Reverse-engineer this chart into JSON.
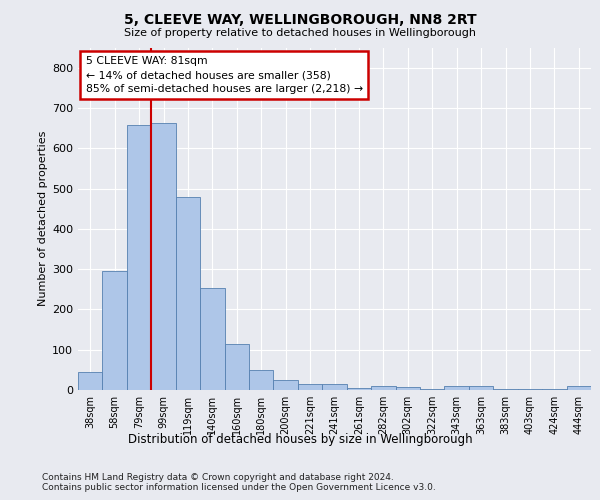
{
  "title": "5, CLEEVE WAY, WELLINGBOROUGH, NN8 2RT",
  "subtitle": "Size of property relative to detached houses in Wellingborough",
  "xlabel": "Distribution of detached houses by size in Wellingborough",
  "ylabel": "Number of detached properties",
  "footer_line1": "Contains HM Land Registry data © Crown copyright and database right 2024.",
  "footer_line2": "Contains public sector information licensed under the Open Government Licence v3.0.",
  "categories": [
    "38sqm",
    "58sqm",
    "79sqm",
    "99sqm",
    "119sqm",
    "140sqm",
    "160sqm",
    "180sqm",
    "200sqm",
    "221sqm",
    "241sqm",
    "261sqm",
    "282sqm",
    "302sqm",
    "322sqm",
    "343sqm",
    "363sqm",
    "383sqm",
    "403sqm",
    "424sqm",
    "444sqm"
  ],
  "values": [
    44,
    295,
    657,
    662,
    478,
    252,
    114,
    49,
    26,
    15,
    15,
    4,
    9,
    7,
    2,
    9,
    9,
    2,
    2,
    2,
    9
  ],
  "bar_color": "#aec6e8",
  "bar_edge_color": "#5580b0",
  "background_color": "#e8eaf0",
  "plot_bg_color": "#e8eaf0",
  "grid_color": "#ffffff",
  "annotation_line1": "5 CLEEVE WAY: 81sqm",
  "annotation_line2": "← 14% of detached houses are smaller (358)",
  "annotation_line3": "85% of semi-detached houses are larger (2,218) →",
  "annotation_box_color": "#cc0000",
  "vline_color": "#cc0000",
  "vline_x": 2.5,
  "ylim": [
    0,
    850
  ],
  "yticks": [
    0,
    100,
    200,
    300,
    400,
    500,
    600,
    700,
    800
  ]
}
